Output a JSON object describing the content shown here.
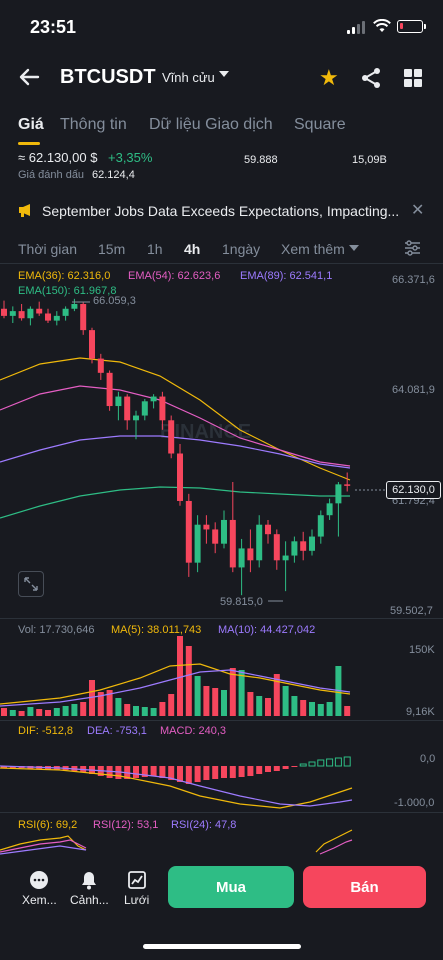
{
  "status": {
    "time": "23:51"
  },
  "header": {
    "symbol": "BTCUSDT",
    "contract_label": "Vĩnh cửu"
  },
  "tabs": [
    "Giá",
    "Thông tin",
    "Dữ liệu Giao dịch",
    "Square"
  ],
  "price": {
    "last": "≈ 62.130,00 $",
    "change": "+3,35%",
    "mark_label": "Giá đánh dấu",
    "mark_value": "62.124,4",
    "stat_1": "59.888",
    "stat_2": "15,09B"
  },
  "news": {
    "text": "September Jobs Data Exceeds Expectations, Impacting..."
  },
  "intervals": {
    "items": [
      "Thời gian",
      "15m",
      "1h",
      "4h",
      "1ngày",
      "Xem thêm"
    ],
    "active": "4h"
  },
  "main_chart": {
    "ema36": "EMA(36): 62.316,0",
    "ema54": "EMA(54): 62.623,6",
    "ema89": "EMA(89): 62.541,1",
    "ema150": "EMA(150): 61.967,8",
    "high_label": "66.059,3",
    "low_label": "59.815,0",
    "y_ticks": [
      "66.371,6",
      "64.081,9",
      "61.792,4",
      "59.502,7"
    ],
    "current_price": "62.130,0",
    "watermark": "BINANCE"
  },
  "volume": {
    "vol": "Vol: 17.730,646",
    "ma5": "MA(5): 38.011,743",
    "ma10": "MA(10): 44.427,042",
    "y_ticks": [
      "150K",
      "9,16K"
    ]
  },
  "macd": {
    "dif": "DIF: -512,8",
    "dea": "DEA: -753,1",
    "macd": "MACD: 240,3",
    "y_ticks": [
      "0,0",
      "-1.000,0"
    ]
  },
  "rsi": {
    "rsi6": "RSI(6): 69,2",
    "rsi12": "RSI(12): 53,1",
    "rsi24": "RSI(24): 47,8"
  },
  "bottom": {
    "nav": [
      "Xem...",
      "Cảnh...",
      "Lưới"
    ],
    "buy": "Mua",
    "sell": "Bán"
  },
  "colors": {
    "up": "#2ebd85",
    "down": "#f6465d",
    "accent": "#f0b90b",
    "bg": "#181a20"
  }
}
